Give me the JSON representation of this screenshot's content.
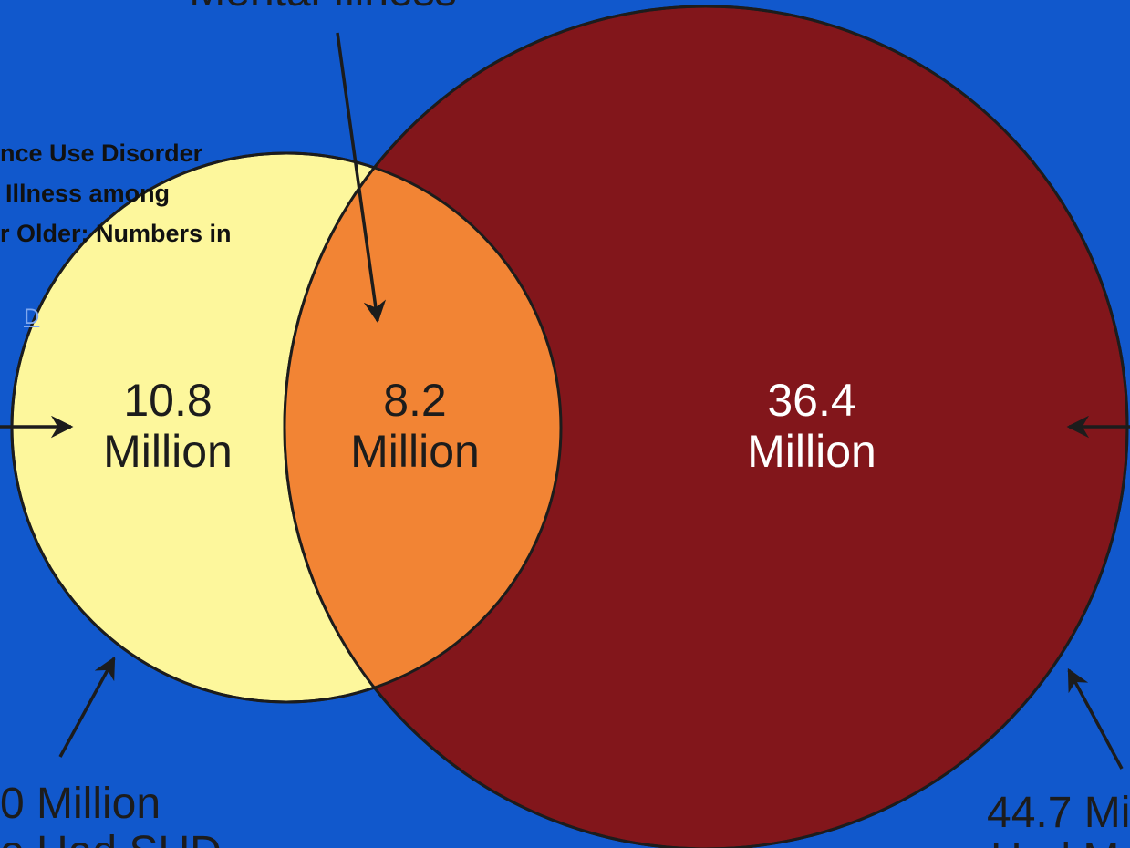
{
  "diagram": {
    "top_label": "Mental Illness",
    "title_fragments": [
      "nce Use Disorder",
      "Illness among",
      "r Older: Numbers in"
    ],
    "link_fragment": "D",
    "regions": {
      "sud_only": {
        "number": "10.8",
        "unit": "Million"
      },
      "overlap": {
        "number": "8.2",
        "unit": "Million"
      },
      "ami_only": {
        "number": "36.4",
        "unit": "Million"
      }
    },
    "bottom_left": {
      "line1": "0 Million",
      "line2": "o Had SUD"
    },
    "bottom_right": {
      "line1": "44.7 Mi",
      "line2": "Had M"
    },
    "colors": {
      "background": "#1158cc",
      "sud_circle": "#fdf79c",
      "overlap": "#f28434",
      "ami_circle": "#82161b",
      "outline": "#1c1c1c",
      "dark_text": "#1c1c1c",
      "light_text": "#ffffff"
    }
  }
}
